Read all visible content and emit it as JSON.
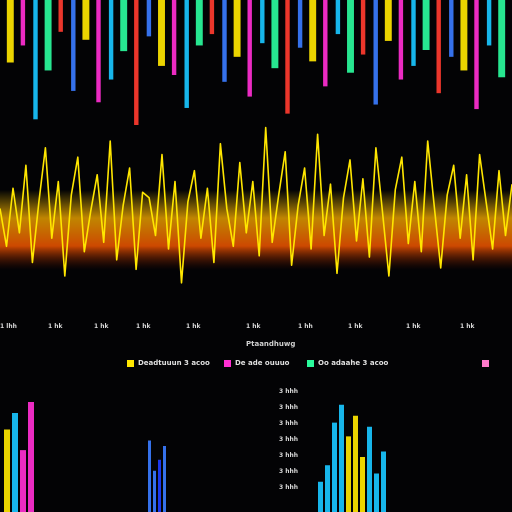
{
  "chart_data": [
    {
      "type": "bar",
      "title": "",
      "orientation": "hanging",
      "colors": [
        "#ffe600",
        "#ff2fd2",
        "#19c6ff",
        "#2afa9c",
        "#ff3b2f",
        "#3a7bff"
      ],
      "series": [
        {
          "values": [
            55,
            40,
            105,
            62,
            28,
            80,
            35,
            90,
            70,
            45,
            110,
            32,
            58,
            66,
            95,
            40,
            30,
            72,
            50,
            85,
            38,
            60,
            100,
            42,
            54,
            76,
            30,
            64,
            48,
            92,
            36,
            70,
            58,
            44,
            82,
            50,
            62,
            96,
            40,
            68
          ]
        }
      ]
    },
    {
      "type": "line",
      "title": "",
      "color": "#ffe600",
      "baseline_color": "#ff6a00",
      "series": [
        {
          "values": [
            10,
            -18,
            25,
            -8,
            42,
            -30,
            15,
            55,
            -12,
            30,
            -40,
            20,
            48,
            -22,
            8,
            35,
            -15,
            60,
            -28,
            12,
            40,
            -35,
            22,
            18,
            -10,
            50,
            -20,
            30,
            -45,
            15,
            38,
            -12,
            25,
            -30,
            58,
            10,
            -18,
            44,
            -8,
            30,
            -25,
            70,
            -15,
            20,
            52,
            -32,
            12,
            40,
            -20,
            65,
            -10,
            28,
            -38,
            18,
            46,
            -14,
            32,
            -26,
            55,
            8,
            -40,
            24,
            48,
            -16,
            30,
            -22,
            60,
            12,
            -34,
            20,
            42,
            -12,
            35,
            -28,
            50,
            15,
            -20,
            38,
            -10,
            28
          ]
        }
      ],
      "x_tick_labels": [
        "1 lhh",
        "1 hk",
        "1 hk",
        "1 hk",
        "1 hk",
        "1 hk",
        "1 hh",
        "1 hk",
        "1 hk",
        "1 hk"
      ]
    },
    {
      "type": "bar",
      "title": "Ptaandhuwg",
      "legend": [
        {
          "label": "Deadtuuun 3 acoo",
          "color": "#ffe600"
        },
        {
          "label": "De ade ouuuo",
          "color": "#ff2fd2"
        },
        {
          "label": "Oo adaahe 3 acoo",
          "color": "#2afa9c"
        },
        {
          "label": "",
          "color": "#ff7acb"
        }
      ],
      "y_tick_labels": [
        "3 hhh",
        "3 hhh",
        "3 hhh",
        "3 hhh",
        "3 hhh",
        "3 hhh",
        "3 hhh"
      ],
      "series": [
        {
          "values": [
            60,
            72,
            45,
            80,
            52,
            30,
            38,
            48,
            22,
            34,
            65,
            78,
            55,
            70,
            40,
            62,
            28,
            44
          ]
        }
      ]
    }
  ]
}
